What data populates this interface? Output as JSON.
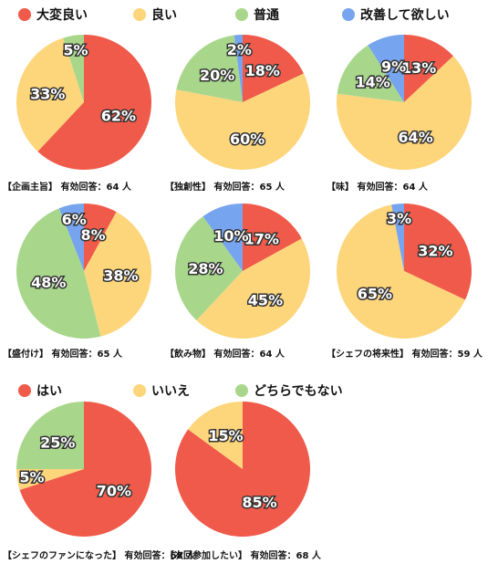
{
  "legend_rating": [
    {
      "label": "大変良い",
      "color": "#f05a4a"
    },
    {
      "label": "良い",
      "color": "#fdd57a"
    },
    {
      "label": "普通",
      "color": "#a8d78c"
    },
    {
      "label": "改善して欲しい",
      "color": "#76a4ee"
    }
  ],
  "legend_yesno": [
    {
      "label": "はい",
      "color": "#f05a4a"
    },
    {
      "label": "いいえ",
      "color": "#fdd57a"
    },
    {
      "label": "どちらでもない",
      "color": "#a8d78c"
    }
  ],
  "chart_data": [
    {
      "type": "pie",
      "caption": "【企画主旨】 有効回答：64 人",
      "slices": [
        {
          "category": "大変良い",
          "value": 62,
          "label": "62%"
        },
        {
          "category": "良い",
          "value": 33,
          "label": "33%"
        },
        {
          "category": "普通",
          "value": 5,
          "label": "5%"
        },
        {
          "category": "改善して欲しい",
          "value": 0,
          "label": ""
        }
      ]
    },
    {
      "type": "pie",
      "caption": "【独創性】 有効回答：65 人",
      "slices": [
        {
          "category": "大変良い",
          "value": 18,
          "label": "18%"
        },
        {
          "category": "良い",
          "value": 60,
          "label": "60%"
        },
        {
          "category": "普通",
          "value": 20,
          "label": "20%"
        },
        {
          "category": "改善して欲しい",
          "value": 2,
          "label": "2%"
        }
      ]
    },
    {
      "type": "pie",
      "caption": "【味】 有効回答：64 人",
      "slices": [
        {
          "category": "大変良い",
          "value": 13,
          "label": "13%"
        },
        {
          "category": "良い",
          "value": 64,
          "label": "64%"
        },
        {
          "category": "普通",
          "value": 14,
          "label": "14%"
        },
        {
          "category": "改善して欲しい",
          "value": 9,
          "label": "9%"
        }
      ]
    },
    {
      "type": "pie",
      "caption": "【盛付け】 有効回答：65 人",
      "slices": [
        {
          "category": "大変良い",
          "value": 8,
          "label": "8%"
        },
        {
          "category": "良い",
          "value": 38,
          "label": "38%"
        },
        {
          "category": "普通",
          "value": 48,
          "label": "48%"
        },
        {
          "category": "改善して欲しい",
          "value": 6,
          "label": "6%"
        }
      ]
    },
    {
      "type": "pie",
      "caption": "【飲み物】 有効回答：64 人",
      "slices": [
        {
          "category": "大変良い",
          "value": 17,
          "label": "17%"
        },
        {
          "category": "良い",
          "value": 45,
          "label": "45%"
        },
        {
          "category": "普通",
          "value": 28,
          "label": "28%"
        },
        {
          "category": "改善して欲しい",
          "value": 10,
          "label": "10%"
        }
      ]
    },
    {
      "type": "pie",
      "caption": "【シェフの将来性】 有効回答：59 人",
      "slices": [
        {
          "category": "大変良い",
          "value": 32,
          "label": "32%"
        },
        {
          "category": "良い",
          "value": 65,
          "label": "65%"
        },
        {
          "category": "普通",
          "value": 0,
          "label": ""
        },
        {
          "category": "改善して欲しい",
          "value": 3,
          "label": "3%"
        }
      ]
    },
    {
      "type": "pie",
      "caption": "【シェフのファンになった】 有効回答：68 人",
      "slices": [
        {
          "category": "はい",
          "value": 70,
          "label": "70%"
        },
        {
          "category": "いいえ",
          "value": 5,
          "label": "5%"
        },
        {
          "category": "どちらでもない",
          "value": 25,
          "label": "25%"
        }
      ]
    },
    {
      "type": "pie",
      "caption": "【次回参加したい】 有効回答：68 人",
      "slices": [
        {
          "category": "はい",
          "value": 85,
          "label": "85%"
        },
        {
          "category": "いいえ",
          "value": 15,
          "label": "15%"
        },
        {
          "category": "どちらでもない",
          "value": 0,
          "label": ""
        }
      ]
    }
  ]
}
